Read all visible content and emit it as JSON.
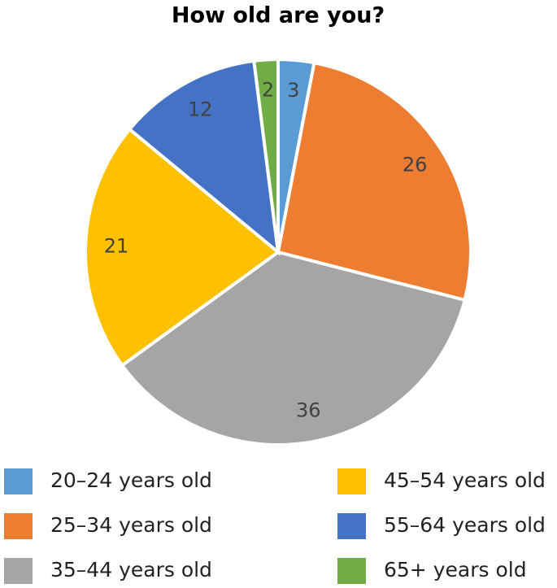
{
  "chart_data": {
    "type": "pie",
    "title": "How old are you?",
    "categories": [
      "20–24 years old",
      "25–34 years old",
      "35–44 years old",
      "45–54 years old",
      "55–64 years old",
      "65+ years old"
    ],
    "values": [
      3,
      26,
      36,
      21,
      12,
      2
    ],
    "colors": [
      "#5b9bd5",
      "#ed7d31",
      "#a5a5a5",
      "#ffc000",
      "#4472c4",
      "#70ad47"
    ]
  }
}
